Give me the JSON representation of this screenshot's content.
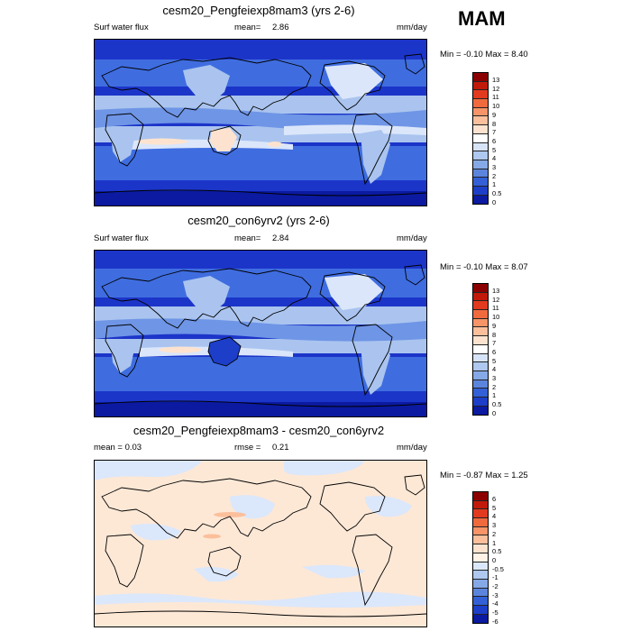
{
  "season": "MAM",
  "panels": [
    {
      "title": "cesm20_Pengfeiexp8mam3 (yrs 2-6)",
      "left_text": "Surf water flux",
      "mean_label": "mean=",
      "mean_value": "2.86",
      "units": "mm/day",
      "minmax": "Min = -0.10 Max = 8.40",
      "labels": [
        "13",
        "12",
        "11",
        "10",
        "9",
        "8",
        "7",
        "6",
        "5",
        "4",
        "3",
        "2",
        "1",
        "0.5",
        "0"
      ],
      "colors": [
        "#8b0000",
        "#c21a0a",
        "#e23a1e",
        "#f06a3e",
        "#f79468",
        "#fbbf9c",
        "#fde3cf",
        "#ffffff",
        "#d7e4f7",
        "#aec8ef",
        "#85a9e6",
        "#5b85dd",
        "#3360d6",
        "#1d3ec8",
        "#0b1aa0"
      ]
    },
    {
      "title": "cesm20_con6yrv2 (yrs 2-6)",
      "left_text": "Surf water flux",
      "mean_label": "mean=",
      "mean_value": "2.84",
      "units": "mm/day",
      "minmax": "Min = -0.10 Max = 8.07",
      "labels": [
        "13",
        "12",
        "11",
        "10",
        "9",
        "8",
        "7",
        "6",
        "5",
        "4",
        "3",
        "2",
        "1",
        "0.5",
        "0"
      ],
      "colors": [
        "#8b0000",
        "#c21a0a",
        "#e23a1e",
        "#f06a3e",
        "#f79468",
        "#fbbf9c",
        "#fde3cf",
        "#ffffff",
        "#d7e4f7",
        "#aec8ef",
        "#85a9e6",
        "#5b85dd",
        "#3360d6",
        "#1d3ec8",
        "#0b1aa0"
      ]
    },
    {
      "title": "cesm20_Pengfeiexp8mam3 - cesm20_con6yrv2",
      "left_text": "mean =  0.03",
      "mean_label": "rmse =",
      "mean_value": "0.21",
      "units": "mm/day",
      "minmax": "Min = -0.87 Max = 1.25",
      "labels": [
        "6",
        "5",
        "4",
        "3",
        "2",
        "1",
        "0.5",
        "0",
        "-0.5",
        "-1",
        "-2",
        "-3",
        "-4",
        "-5",
        "-6"
      ],
      "colors": [
        "#8b0000",
        "#c21a0a",
        "#e23a1e",
        "#f06a3e",
        "#f79468",
        "#fbbf9c",
        "#fde3cf",
        "#fff2e6",
        "#dbe8fb",
        "#aec8ef",
        "#85a9e6",
        "#5b85dd",
        "#3360d6",
        "#1d3ec8",
        "#0b1aa0"
      ]
    }
  ],
  "style": {
    "ocean_deep": "#1c35c9",
    "ocean_mid": "#3f6de0",
    "band_light": "#aac4ef",
    "band_pale": "#dbe6fa",
    "land_dry": "#fde3cf",
    "diff_bg": "#fde8d6",
    "diff_blue": "#dbe7fb"
  }
}
